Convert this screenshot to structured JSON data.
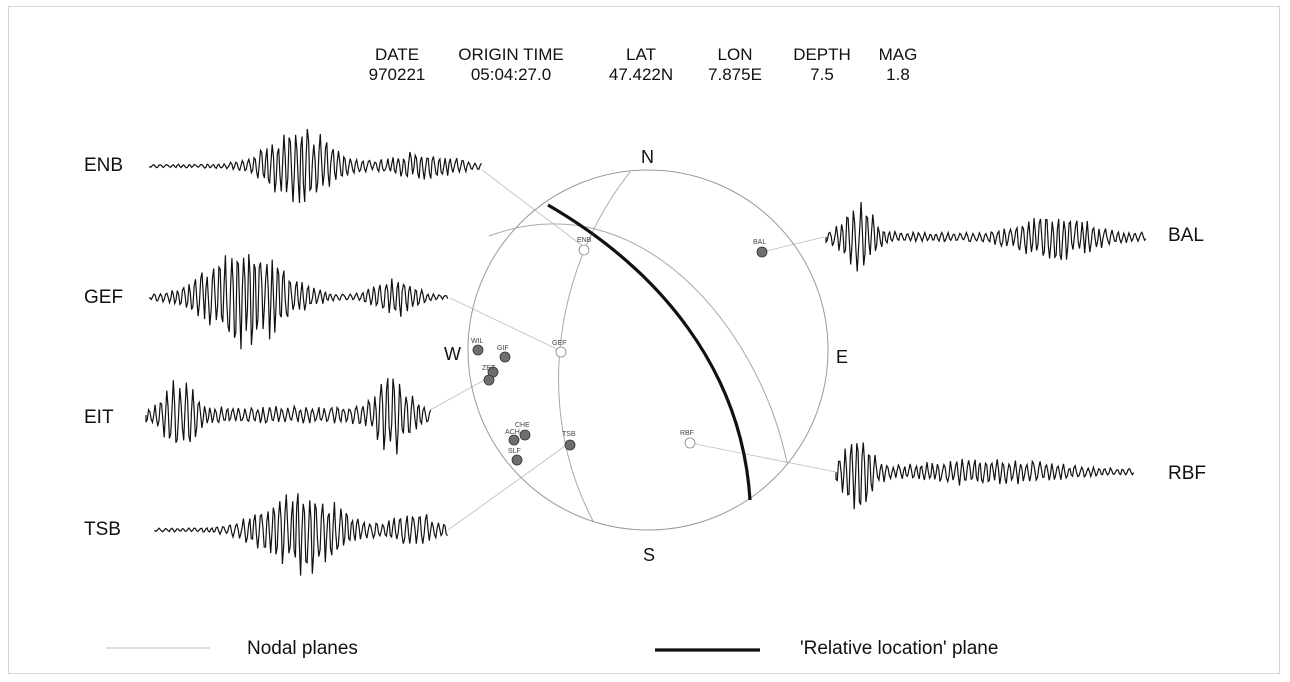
{
  "header": {
    "columns": [
      {
        "label": "DATE",
        "value": "970221"
      },
      {
        "label": "ORIGIN TIME",
        "value": "05:04:27.0"
      },
      {
        "label": "LAT",
        "value": "47.422N"
      },
      {
        "label": "LON",
        "value": "7.875E"
      },
      {
        "label": "DEPTH",
        "value": "7.5"
      },
      {
        "label": "MAG",
        "value": "1.8"
      }
    ]
  },
  "stations_left": [
    "ENB",
    "GEF",
    "EIT",
    "TSB"
  ],
  "stations_right": [
    "BAL",
    "RBF"
  ],
  "directions": {
    "north": "N",
    "south": "S",
    "east": "E",
    "west": "W"
  },
  "sphere_labels": {
    "enb": "ENB",
    "bal": "BAL",
    "gef": "GEF",
    "rbf": "RBF",
    "tsb": "TSB",
    "wil": "WIL",
    "gif": "GIF",
    "zet": "ZET",
    "che": "CHE",
    "ach": "ACH",
    "slf": "SLF"
  },
  "legend": {
    "nodal": "Nodal planes",
    "relative": "'Relative location' plane"
  },
  "colors": {
    "ink": "#111111",
    "circle": "#9a9a9a",
    "filled": "#6e6e6e"
  }
}
